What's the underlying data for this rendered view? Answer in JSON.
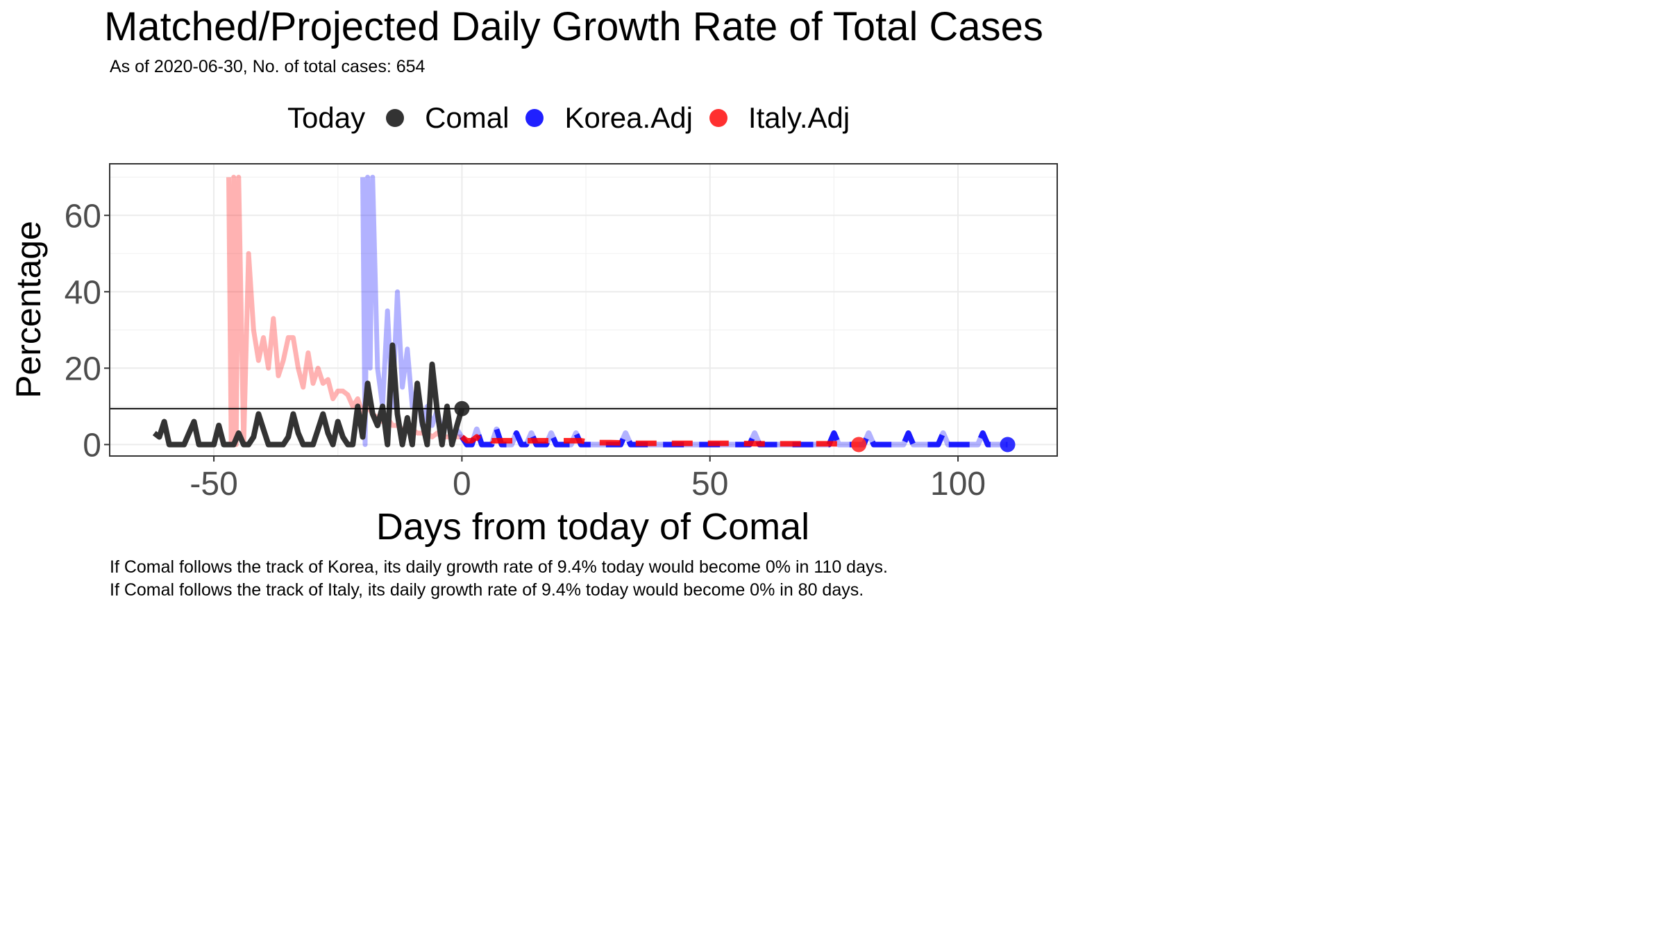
{
  "chart_data": {
    "type": "line",
    "title": "Matched/Projected Daily Growth Rate of Total Cases",
    "subtitle": "As of 2020-06-30, No. of total cases: 654",
    "xlabel": "Days from today of Comal",
    "ylabel": "Percentage",
    "xlim": [
      -71,
      120
    ],
    "ylim": [
      -3,
      73.5
    ],
    "x_ticks": [
      -50,
      0,
      50,
      100
    ],
    "y_ticks": [
      0,
      20,
      40,
      60
    ],
    "grid": true,
    "legend_position": "top",
    "legend_title": "Today",
    "hline": {
      "y": 9.4,
      "color": "#000000"
    },
    "series": [
      {
        "name": "Comal",
        "color": "#333333",
        "points": [
          [
            -62,
            3
          ],
          [
            -61,
            2
          ],
          [
            -60,
            6
          ],
          [
            -59,
            0
          ],
          [
            -58,
            0
          ],
          [
            -57,
            0
          ],
          [
            -56,
            0
          ],
          [
            -55,
            3
          ],
          [
            -54,
            6
          ],
          [
            -53,
            0
          ],
          [
            -52,
            0
          ],
          [
            -51,
            0
          ],
          [
            -50,
            0
          ],
          [
            -49,
            5
          ],
          [
            -48,
            0
          ],
          [
            -47,
            0
          ],
          [
            -46,
            0
          ],
          [
            -45,
            3
          ],
          [
            -44,
            0
          ],
          [
            -43,
            0
          ],
          [
            -42,
            2
          ],
          [
            -41,
            8
          ],
          [
            -40,
            4
          ],
          [
            -39,
            0
          ],
          [
            -38,
            0
          ],
          [
            -37,
            0
          ],
          [
            -36,
            0
          ],
          [
            -35,
            2
          ],
          [
            -34,
            8
          ],
          [
            -33,
            3
          ],
          [
            -32,
            0
          ],
          [
            -31,
            0
          ],
          [
            -30,
            0
          ],
          [
            -29,
            4
          ],
          [
            -28,
            8
          ],
          [
            -27,
            3
          ],
          [
            -26,
            0
          ],
          [
            -25,
            6
          ],
          [
            -24,
            2
          ],
          [
            -23,
            0
          ],
          [
            -22,
            0
          ],
          [
            -21,
            10
          ],
          [
            -20,
            2
          ],
          [
            -19,
            16
          ],
          [
            -18,
            8
          ],
          [
            -17,
            5
          ],
          [
            -16,
            10
          ],
          [
            -15,
            0
          ],
          [
            -14,
            26
          ],
          [
            -13,
            8
          ],
          [
            -12,
            0
          ],
          [
            -11,
            7
          ],
          [
            -10,
            0
          ],
          [
            -9,
            16
          ],
          [
            -8,
            6
          ],
          [
            -7,
            0
          ],
          [
            -6,
            21
          ],
          [
            -5,
            9
          ],
          [
            -4,
            0
          ],
          [
            -3,
            10
          ],
          [
            -2,
            0
          ],
          [
            -1,
            5
          ],
          [
            0,
            9.4
          ]
        ],
        "today_point": [
          0,
          9.4
        ]
      },
      {
        "name": "Korea.Adj",
        "color": "#0000ff",
        "points": [
          [
            -20,
            70
          ],
          [
            -19.5,
            0
          ],
          [
            -19,
            70
          ],
          [
            -18.5,
            20
          ],
          [
            -18,
            70
          ],
          [
            -17,
            20
          ],
          [
            -16,
            10
          ],
          [
            -15,
            35
          ],
          [
            -14,
            10
          ],
          [
            -13,
            40
          ],
          [
            -12,
            15
          ],
          [
            -11,
            25
          ],
          [
            -10,
            10
          ],
          [
            -9,
            15
          ],
          [
            -8,
            5
          ],
          [
            -7,
            10
          ],
          [
            -6,
            5
          ],
          [
            -5,
            9
          ],
          [
            -4,
            3
          ],
          [
            -3,
            6
          ],
          [
            -2,
            2
          ],
          [
            -1,
            4
          ],
          [
            0,
            2
          ],
          [
            1,
            0
          ],
          [
            2,
            0
          ],
          [
            3,
            4
          ],
          [
            4,
            0
          ],
          [
            5,
            0
          ],
          [
            6,
            0
          ],
          [
            7,
            4
          ],
          [
            8,
            0
          ],
          [
            9,
            0
          ],
          [
            10,
            0
          ],
          [
            11,
            3
          ],
          [
            12,
            0
          ],
          [
            13,
            0
          ],
          [
            14,
            3
          ],
          [
            15,
            0
          ],
          [
            16,
            0
          ],
          [
            17,
            0
          ],
          [
            18,
            3
          ],
          [
            19,
            0
          ],
          [
            20,
            0
          ],
          [
            21,
            0
          ],
          [
            22,
            0
          ],
          [
            23,
            3
          ],
          [
            24,
            0
          ],
          [
            25,
            0
          ],
          [
            26,
            0
          ],
          [
            27,
            0
          ],
          [
            28,
            0
          ],
          [
            29,
            0
          ],
          [
            30,
            0
          ],
          [
            31,
            0
          ],
          [
            32,
            0
          ],
          [
            33,
            3
          ],
          [
            34,
            0
          ],
          [
            35,
            0
          ],
          [
            40,
            0
          ],
          [
            45,
            0
          ],
          [
            50,
            0
          ],
          [
            55,
            0
          ],
          [
            58,
            0
          ],
          [
            59,
            3
          ],
          [
            60,
            0
          ],
          [
            65,
            0
          ],
          [
            70,
            0
          ],
          [
            74,
            0
          ],
          [
            75,
            3
          ],
          [
            76,
            0
          ],
          [
            80,
            0
          ],
          [
            81,
            0
          ],
          [
            82,
            3
          ],
          [
            83,
            0
          ],
          [
            85,
            0
          ],
          [
            88,
            0
          ],
          [
            89,
            0
          ],
          [
            90,
            3
          ],
          [
            91,
            0
          ],
          [
            95,
            0
          ],
          [
            96,
            0
          ],
          [
            97,
            3
          ],
          [
            98,
            0
          ],
          [
            100,
            0
          ],
          [
            104,
            0
          ],
          [
            105,
            3
          ],
          [
            106,
            0
          ],
          [
            110,
            0
          ]
        ],
        "today_point": [
          110,
          0
        ]
      },
      {
        "name": "Italy.Adj",
        "color": "#ff0000",
        "points": [
          [
            -47,
            70
          ],
          [
            -46.5,
            0
          ],
          [
            -46,
            70
          ],
          [
            -45.5,
            0
          ],
          [
            -45,
            70
          ],
          [
            -44,
            0
          ],
          [
            -43,
            50
          ],
          [
            -42,
            30
          ],
          [
            -41,
            22
          ],
          [
            -40,
            28
          ],
          [
            -39,
            20
          ],
          [
            -38,
            33
          ],
          [
            -37,
            18
          ],
          [
            -36,
            22
          ],
          [
            -35,
            28
          ],
          [
            -34,
            28
          ],
          [
            -33,
            20
          ],
          [
            -32,
            15
          ],
          [
            -31,
            24
          ],
          [
            -30,
            16
          ],
          [
            -29,
            20
          ],
          [
            -28,
            16
          ],
          [
            -27,
            17
          ],
          [
            -26,
            12
          ],
          [
            -25,
            14
          ],
          [
            -24,
            14
          ],
          [
            -23,
            13
          ],
          [
            -22,
            10
          ],
          [
            -21,
            12
          ],
          [
            -20,
            8
          ],
          [
            -19,
            10
          ],
          [
            -18,
            8
          ],
          [
            -17,
            7
          ],
          [
            -16,
            6
          ],
          [
            -15,
            7
          ],
          [
            -14,
            5
          ],
          [
            -13,
            5
          ],
          [
            -12,
            4
          ],
          [
            -11,
            4
          ],
          [
            -10,
            4
          ],
          [
            -9,
            3
          ],
          [
            -8,
            3
          ],
          [
            -7,
            3
          ],
          [
            -6,
            2
          ],
          [
            -5,
            3
          ],
          [
            -4,
            2
          ],
          [
            -3,
            2
          ],
          [
            -2,
            2
          ],
          [
            -1,
            2
          ],
          [
            0,
            2
          ],
          [
            1,
            1
          ],
          [
            2,
            1
          ],
          [
            3,
            2
          ],
          [
            4,
            1
          ],
          [
            5,
            2
          ],
          [
            6,
            1
          ],
          [
            8,
            1
          ],
          [
            10,
            1
          ],
          [
            12,
            1
          ],
          [
            14,
            1
          ],
          [
            15,
            1
          ],
          [
            16,
            1
          ],
          [
            18,
            1
          ],
          [
            20,
            1
          ],
          [
            22,
            1
          ],
          [
            24,
            1
          ],
          [
            26,
            0.5
          ],
          [
            28,
            0.5
          ],
          [
            30,
            0.5
          ],
          [
            35,
            0.3
          ],
          [
            40,
            0.3
          ],
          [
            45,
            0.3
          ],
          [
            50,
            0.3
          ],
          [
            55,
            0.3
          ],
          [
            60,
            0.2
          ],
          [
            65,
            0.2
          ],
          [
            70,
            0.2
          ],
          [
            75,
            0.2
          ],
          [
            80,
            0
          ]
        ],
        "today_point": [
          80,
          0
        ]
      }
    ]
  },
  "captions": {
    "line1": "If Comal follows the track of Korea, its daily growth rate of 9.4% today would become 0% in 110 days.",
    "line2": "If Comal follows the track of Italy, its daily growth rate of 9.4% today would become 0% in 80 days."
  }
}
